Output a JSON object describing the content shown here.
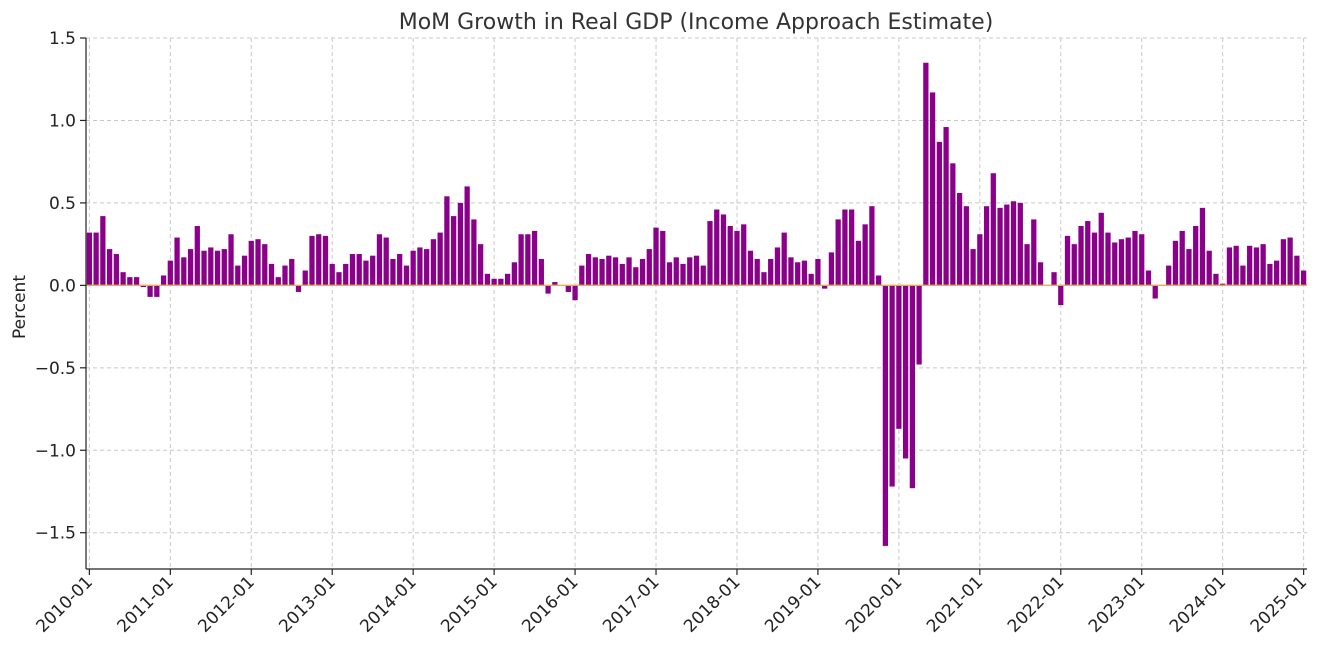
{
  "chart_data": {
    "type": "bar",
    "title": "MoM Growth in Real GDP (Income Approach Estimate)",
    "xlabel": "",
    "ylabel": "Percent",
    "ylim": [
      -1.72,
      1.5
    ],
    "yticks": [
      1.5,
      1.0,
      0.5,
      0.0,
      -0.5,
      -1.0,
      -1.5
    ],
    "ytick_labels": [
      "1.5",
      "1.0",
      "0.5",
      "0.0",
      "−0.5",
      "−1.0",
      "−1.5"
    ],
    "xtick_labels": [
      "2010-01",
      "2011-01",
      "2012-01",
      "2013-01",
      "2014-01",
      "2015-01",
      "2016-01",
      "2017-01",
      "2018-01",
      "2019-01",
      "2020-01",
      "2021-01",
      "2022-01",
      "2023-01",
      "2024-01",
      "2025-01"
    ],
    "grid": true,
    "bar_color": "#8b008b",
    "zero_line_color": "#e8a95c",
    "start": "2010-01",
    "series": [
      {
        "name": "MoM Growth",
        "values": [
          0.32,
          0.32,
          0.42,
          0.22,
          0.19,
          0.08,
          0.05,
          0.05,
          -0.01,
          -0.07,
          -0.07,
          0.06,
          0.15,
          0.29,
          0.17,
          0.22,
          0.36,
          0.21,
          0.23,
          0.21,
          0.22,
          0.31,
          0.12,
          0.18,
          0.27,
          0.28,
          0.25,
          0.13,
          0.05,
          0.12,
          0.16,
          -0.04,
          0.09,
          0.3,
          0.31,
          0.3,
          0.13,
          0.08,
          0.13,
          0.19,
          0.19,
          0.15,
          0.18,
          0.31,
          0.29,
          0.16,
          0.19,
          0.12,
          0.21,
          0.23,
          0.22,
          0.28,
          0.32,
          0.54,
          0.42,
          0.5,
          0.6,
          0.4,
          0.25,
          0.07,
          0.04,
          0.04,
          0.07,
          0.14,
          0.31,
          0.31,
          0.33,
          0.16,
          -0.05,
          0.02,
          0.0,
          -0.04,
          -0.09,
          0.12,
          0.19,
          0.17,
          0.16,
          0.18,
          0.17,
          0.13,
          0.17,
          0.11,
          0.16,
          0.22,
          0.35,
          0.33,
          0.14,
          0.17,
          0.13,
          0.17,
          0.18,
          0.12,
          0.39,
          0.46,
          0.43,
          0.36,
          0.33,
          0.37,
          0.21,
          0.16,
          0.08,
          0.16,
          0.23,
          0.32,
          0.17,
          0.14,
          0.15,
          0.07,
          0.16,
          -0.02,
          0.2,
          0.4,
          0.46,
          0.46,
          0.27,
          0.37,
          0.48,
          0.06,
          -1.58,
          -1.22,
          -0.87,
          -1.05,
          -1.23,
          -0.48,
          1.35,
          1.17,
          0.87,
          0.96,
          0.74,
          0.56,
          0.48,
          0.22,
          0.31,
          0.48,
          0.68,
          0.47,
          0.49,
          0.51,
          0.5,
          0.25,
          0.4,
          0.14,
          0.0,
          0.08,
          -0.12,
          0.3,
          0.25,
          0.36,
          0.39,
          0.32,
          0.44,
          0.32,
          0.26,
          0.28,
          0.29,
          0.33,
          0.31,
          0.09,
          -0.08,
          0.0,
          0.12,
          0.27,
          0.33,
          0.22,
          0.36,
          0.47,
          0.21,
          0.07,
          0.01,
          0.23,
          0.24,
          0.12,
          0.24,
          0.23,
          0.25,
          0.13,
          0.15,
          0.28,
          0.29,
          0.18,
          0.09
        ]
      }
    ]
  }
}
